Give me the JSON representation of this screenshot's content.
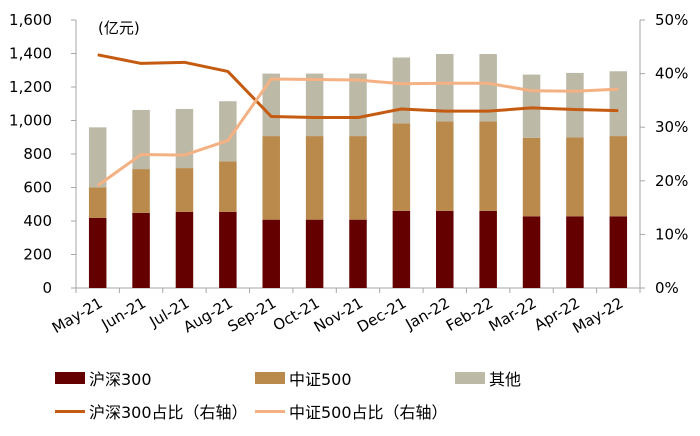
{
  "chart_data": {
    "type": "bar",
    "subtype": "stacked-bar-with-lines",
    "title": "",
    "unit_label": "(亿元)",
    "xlabel": "",
    "ylabel": "",
    "categories": [
      "May-21",
      "Jun-21",
      "Jul-21",
      "Aug-21",
      "Sep-21",
      "Oct-21",
      "Nov-21",
      "Dec-21",
      "Jan-22",
      "Feb-22",
      "Mar-22",
      "Apr-22",
      "May-22"
    ],
    "series": [
      {
        "name": "沪深300",
        "type": "bar",
        "axis": "left",
        "color": "#640000",
        "values": [
          418,
          448,
          454,
          454,
          408,
          408,
          408,
          460,
          460,
          460,
          428,
          428,
          428
        ]
      },
      {
        "name": "中证500",
        "type": "bar",
        "axis": "left",
        "color": "#B98A4B",
        "values": [
          183,
          262,
          262,
          302,
          499,
          499,
          499,
          523,
          535,
          535,
          469,
          472,
          479
        ]
      },
      {
        "name": "其他",
        "type": "bar",
        "axis": "left",
        "color": "#BCB9A7",
        "values": [
          358,
          353,
          353,
          359,
          373,
          373,
          373,
          393,
          402,
          402,
          377,
          384,
          387
        ]
      },
      {
        "name": "沪深300占比（右轴）",
        "type": "line",
        "axis": "right",
        "color": "#C55A11",
        "values": [
          43.5,
          41.9,
          42.1,
          40.4,
          32.0,
          31.8,
          31.8,
          33.4,
          33.0,
          33.0,
          33.6,
          33.3,
          33.1
        ]
      },
      {
        "name": "中证500占比（右轴）",
        "type": "line",
        "axis": "right",
        "color": "#F4B183",
        "values": [
          19.1,
          24.9,
          24.8,
          27.5,
          39.0,
          38.9,
          38.8,
          38.1,
          38.2,
          38.2,
          36.8,
          36.7,
          37.1
        ]
      }
    ],
    "ylim": [
      0,
      1600
    ],
    "yticks": [
      "0",
      "200",
      "400",
      "600",
      "800",
      "1,000",
      "1,200",
      "1,400",
      "1,600"
    ],
    "y2lim": [
      0,
      50
    ],
    "y2ticks": [
      "0%",
      "10%",
      "20%",
      "30%",
      "40%",
      "50%"
    ],
    "grid": false,
    "legend_position": "bottom"
  },
  "legend": {
    "items": [
      {
        "label": "沪深300",
        "kind": "swatch",
        "color": "#640000"
      },
      {
        "label": "中证500",
        "kind": "swatch",
        "color": "#B98A4B"
      },
      {
        "label": "其他",
        "kind": "swatch",
        "color": "#BCB9A7"
      },
      {
        "label": "沪深300占比（右轴）",
        "kind": "line",
        "color": "#C55A11"
      },
      {
        "label": "中证500占比（右轴）",
        "kind": "line",
        "color": "#F4B183"
      }
    ]
  },
  "colors": {
    "axis": "#A6A6A6"
  }
}
